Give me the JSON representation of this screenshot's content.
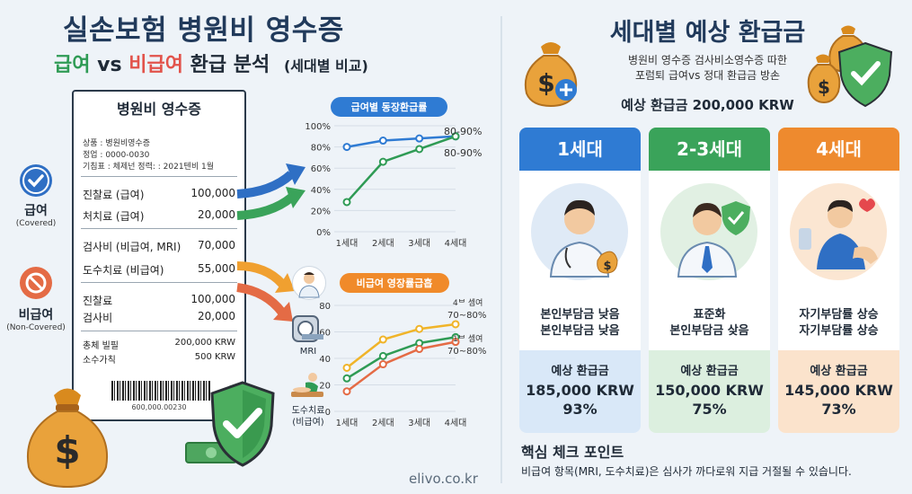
{
  "header": {
    "title": "실손보험 병원비 영수증",
    "sub_covered": "급여",
    "sub_vs": "vs",
    "sub_noncovered": "비급여",
    "sub_rest": "환급 분석",
    "sub_small": "(세대별 비교)"
  },
  "badges": {
    "covered_label": "급여",
    "covered_sub": "(Covered)",
    "noncovered_label": "비급여",
    "noncovered_sub": "(Non-Covered)"
  },
  "receipt": {
    "title": "병원비 영수증",
    "meta": [
      "상품 : 병원비영수증",
      "정업 : 0000-0030",
      "기침표 : 체제넌 정력: : 2021텐비 1월"
    ],
    "rows_a": [
      {
        "label": "진찰료 (급여)",
        "value": "100,000"
      },
      {
        "label": "처치료 (급여)",
        "value": "20,000"
      }
    ],
    "rows_b": [
      {
        "label": "검사비 (비급여, MRI)",
        "value": "70,000"
      },
      {
        "label": "도수치료 (비급여)",
        "value": "55,000"
      }
    ],
    "rows_c": [
      {
        "label": "진찰료",
        "value": "100,000"
      },
      {
        "label": "검사비",
        "value": "20,000"
      }
    ],
    "rows_d": [
      {
        "label": "총체 빌필",
        "value": "200,000 KRW"
      },
      {
        "label": "소수가칙",
        "value": "500 KRW"
      }
    ],
    "barcode_number": "600,000.00230"
  },
  "chart_data": [
    {
      "type": "line",
      "title": "급여별 동장환급률",
      "categories": [
        "1세대",
        "2세대",
        "3세대",
        "4세대"
      ],
      "yticks": [
        "0%",
        "20%",
        "40%",
        "60%",
        "80%",
        "100%"
      ],
      "ylim": [
        0,
        100
      ],
      "series": [
        {
          "values": [
            80,
            86,
            88,
            90
          ],
          "color": "#2f7bd3"
        },
        {
          "values": [
            28,
            66,
            78,
            90
          ],
          "color": "#2f9b55"
        }
      ],
      "annotations": [
        "80-90%",
        "80-90%"
      ]
    },
    {
      "type": "line",
      "title": "비급여 영장률급흡",
      "categories": [
        "1세대",
        "2세대",
        "3세대",
        "4세대"
      ],
      "yticks": [
        "0",
        "20",
        "40",
        "60",
        "80"
      ],
      "ylim": [
        0,
        90
      ],
      "series": [
        {
          "values": [
            37,
            61,
            70,
            74
          ],
          "color": "#f0b429"
        },
        {
          "values": [
            28,
            47,
            58,
            63
          ],
          "color": "#2f9b55"
        },
        {
          "values": [
            17,
            40,
            53,
            59
          ],
          "color": "#e46b45"
        }
      ],
      "annotations": [
        "4ᄇ 셈여",
        "70~80%",
        "1ᄇ 셈여",
        "70~80%"
      ]
    }
  ],
  "side_icons": {
    "mri_label": "MRI",
    "manual_label1": "도수치료",
    "manual_label2": "(비급여)"
  },
  "right": {
    "title": "세대별 예상 환급금",
    "sub1": "병원비 영수증 검사비소영수증 따한",
    "sub2": "포럼퇴 급여vs 정대 환급금 방손",
    "estimate": "예상 환급금 200,000 KRW",
    "cards": [
      {
        "head": "1세대",
        "desc1": "본인부담금 낮음",
        "desc2": "본인부담금 낮음",
        "foot_label": "예상 환급금",
        "amount": "185,000 KRW",
        "pct": "93%",
        "color": "#2f7bd3",
        "foot_bg": "#d9e8f8",
        "img_bg": "#dfeaf6"
      },
      {
        "head": "2-3세대",
        "desc1": "표준화",
        "desc2": "본인부담금 샂음",
        "foot_label": "예상 환급금",
        "amount": "150,000 KRW",
        "pct": "75%",
        "color": "#3aa35a",
        "foot_bg": "#dcefdf",
        "img_bg": "#e1f0e3"
      },
      {
        "head": "4세대",
        "desc1": "자기부담률 상승",
        "desc2": "자기부담률 상승",
        "foot_label": "예상 환급금",
        "amount": "145,000 KRW",
        "pct": "73%",
        "color": "#ee8a2e",
        "foot_bg": "#fbe3cc",
        "img_bg": "#fbe6d2"
      }
    ],
    "key_title": "핵심 체크 포인트",
    "key_text": "비급여 항목(MRI, 도수치료)은 심사가 까다로워 지급 거절될 수 있습니다."
  },
  "footer": "elivo.co.kr"
}
